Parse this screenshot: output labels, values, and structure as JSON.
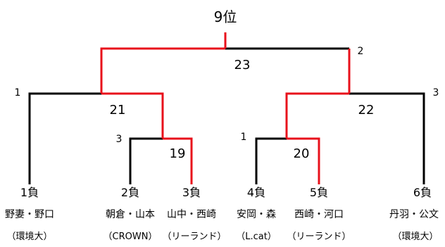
{
  "title": "9位",
  "matches": {
    "m19": "19",
    "m20": "20",
    "m21": "21",
    "m22": "22",
    "m23": "23"
  },
  "seeds": {
    "left_top": "1",
    "right_top": "2",
    "right_mid": "3",
    "left_mid": "3",
    "center_mid": "1"
  },
  "teams": [
    {
      "result": "1負",
      "names": "野妻・野口",
      "org": "（環境大）"
    },
    {
      "result": "2負",
      "names": "朝倉・山本",
      "org": "（CROWN）"
    },
    {
      "result": "3負",
      "names": "山中・西崎",
      "org": "（リーランド）"
    },
    {
      "result": "4負",
      "names": "安岡・森",
      "org": "（L.cat）"
    },
    {
      "result": "5負",
      "names": "西崎・河口",
      "org": "（リーランド）"
    },
    {
      "result": "6負",
      "names": "丹羽・公文",
      "org": "（環境大）"
    }
  ],
  "colors": {
    "winner_path": "#e8111b",
    "loser_path": "#000000"
  }
}
